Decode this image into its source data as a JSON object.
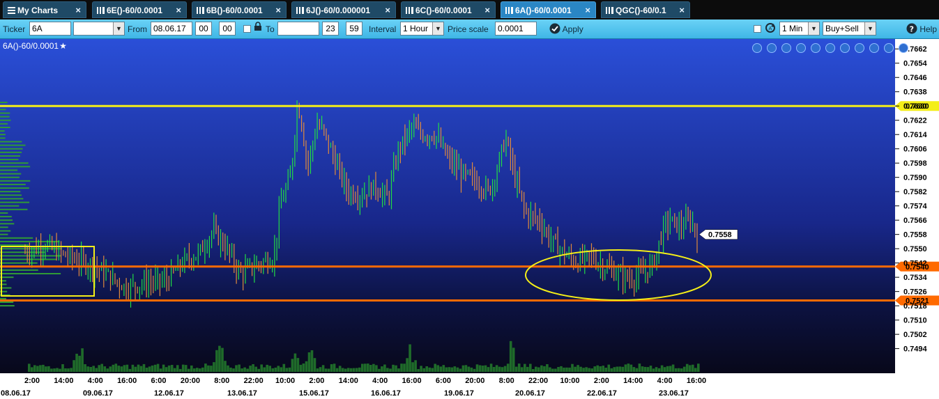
{
  "tabs": [
    {
      "label": "My Charts",
      "active": false,
      "icon": "list-icon"
    },
    {
      "label": "6E()-60/0.0001",
      "active": false,
      "icon": "chart-icon"
    },
    {
      "label": "6B()-60/0.0001",
      "active": false,
      "icon": "chart-icon"
    },
    {
      "label": "6J()-60/0.000001",
      "active": false,
      "icon": "chart-icon"
    },
    {
      "label": "6C()-60/0.0001",
      "active": false,
      "icon": "chart-icon"
    },
    {
      "label": "6A()-60/0.0001",
      "active": true,
      "icon": "chart-icon"
    },
    {
      "label": "QGC()-60/0.1",
      "active": false,
      "icon": "chart-icon"
    }
  ],
  "toolbar": {
    "ticker_label": "Ticker",
    "ticker_value": "6A",
    "from_label": "From",
    "from_date": "08.06.17",
    "from_hour": "00",
    "from_min": "00",
    "to_label": "To",
    "to_date": "",
    "to_hour": "23",
    "to_min": "59",
    "interval_label": "Interval",
    "interval_value": "1 Hour",
    "price_scale_label": "Price scale",
    "price_scale_value": "0.0001",
    "apply_label": "Apply",
    "timeframe_value": "1 Min",
    "side_value": "Buy+Sell",
    "help_label": "Help"
  },
  "chart_title": "6A()-60/0.0001",
  "chart_controls": [
    "zoom-in-icon",
    "zoom-out-icon",
    "zoom-fit-icon",
    "zoom-reset-icon",
    "grid-icon",
    "pencil-icon",
    "refresh-icon",
    "settings-icon",
    "expand-icon",
    "close-icon",
    "dropdown-icon"
  ],
  "colors": {
    "background_top": "#2a4fd8",
    "background_bottom": "#0a0a1e",
    "up_bar": "#22dd44",
    "down_bar": "#e08a3c",
    "resistance": "#f4ee18",
    "support": "#ff6a00",
    "profile": "#2f9a36",
    "highlight": "#f4ee18"
  },
  "chart_data": {
    "type": "bar",
    "subtype": "ohlc-price-with-volume-profile",
    "y_axis_ticks": [
      "0.7662",
      "0.7654",
      "0.7646",
      "0.7638",
      "0.7630",
      "0.7622",
      "0.7614",
      "0.7606",
      "0.7598",
      "0.7590",
      "0.7582",
      "0.7574",
      "0.7566",
      "0.7558",
      "0.7550",
      "0.7542",
      "0.7534",
      "0.7526",
      "0.7518",
      "0.7510",
      "0.7502",
      "0.7494"
    ],
    "ylim": [
      0.7488,
      0.7666
    ],
    "x_time_labels": [
      "2:00",
      "14:00",
      "4:00",
      "16:00",
      "6:00",
      "20:00",
      "8:00",
      "22:00",
      "10:00",
      "2:00",
      "14:00",
      "4:00",
      "16:00",
      "6:00",
      "20:00",
      "8:00",
      "22:00",
      "10:00",
      "2:00",
      "14:00",
      "4:00",
      "16:00"
    ],
    "x_date_labels": [
      "08.06.17",
      "09.06.17",
      "12.06.17",
      "13.06.17",
      "15.06.17",
      "16.06.17",
      "19.06.17",
      "20.06.17",
      "22.06.17",
      "23.06.17"
    ],
    "current_price": "0.7558",
    "price_lines": [
      {
        "label": "0.7630",
        "value": 0.763,
        "color": "#f4ee18"
      },
      {
        "label": "0.7540",
        "value": 0.754,
        "color": "#ff6a00"
      },
      {
        "label": "0.7521",
        "value": 0.7521,
        "color": "#ff6a00"
      }
    ],
    "price_path": [
      [
        0,
        0.7548
      ],
      [
        0.03,
        0.7552
      ],
      [
        0.06,
        0.7546
      ],
      [
        0.09,
        0.7542
      ],
      [
        0.12,
        0.7536
      ],
      [
        0.15,
        0.7528
      ],
      [
        0.18,
        0.7531
      ],
      [
        0.21,
        0.7532
      ],
      [
        0.235,
        0.7542
      ],
      [
        0.26,
        0.7548
      ],
      [
        0.28,
        0.756
      ],
      [
        0.3,
        0.755
      ],
      [
        0.32,
        0.7536
      ],
      [
        0.345,
        0.7541
      ],
      [
        0.37,
        0.7545
      ],
      [
        0.38,
        0.7575
      ],
      [
        0.395,
        0.759
      ],
      [
        0.405,
        0.763
      ],
      [
        0.41,
        0.7625
      ],
      [
        0.42,
        0.7596
      ],
      [
        0.435,
        0.762
      ],
      [
        0.445,
        0.7615
      ],
      [
        0.46,
        0.76
      ],
      [
        0.48,
        0.7582
      ],
      [
        0.5,
        0.758
      ],
      [
        0.52,
        0.7585
      ],
      [
        0.54,
        0.7578
      ],
      [
        0.555,
        0.7605
      ],
      [
        0.575,
        0.7618
      ],
      [
        0.59,
        0.7614
      ],
      [
        0.61,
        0.7614
      ],
      [
        0.63,
        0.76
      ],
      [
        0.65,
        0.7592
      ],
      [
        0.67,
        0.7588
      ],
      [
        0.69,
        0.7582
      ],
      [
        0.7,
        0.7592
      ],
      [
        0.715,
        0.7612
      ],
      [
        0.73,
        0.7588
      ],
      [
        0.745,
        0.757
      ],
      [
        0.765,
        0.7566
      ],
      [
        0.78,
        0.7556
      ],
      [
        0.8,
        0.7548
      ],
      [
        0.82,
        0.7542
      ],
      [
        0.84,
        0.7546
      ],
      [
        0.86,
        0.754
      ],
      [
        0.88,
        0.7536
      ],
      [
        0.9,
        0.7533
      ],
      [
        0.92,
        0.7536
      ],
      [
        0.935,
        0.7542
      ],
      [
        0.95,
        0.7562
      ],
      [
        0.96,
        0.7566
      ],
      [
        0.975,
        0.7562
      ],
      [
        0.99,
        0.7566
      ],
      [
        1.0,
        0.7558
      ]
    ],
    "volume_spikes": [
      0.075,
      0.285,
      0.4,
      0.42,
      0.57,
      0.72
    ],
    "annotations": [
      {
        "kind": "rectangle",
        "color": "#f4ee18",
        "desc": "highlight around profile and early bars"
      },
      {
        "kind": "ellipse",
        "color": "#f4ee18",
        "desc": "highlight around consolidation near 0.7540"
      }
    ]
  }
}
